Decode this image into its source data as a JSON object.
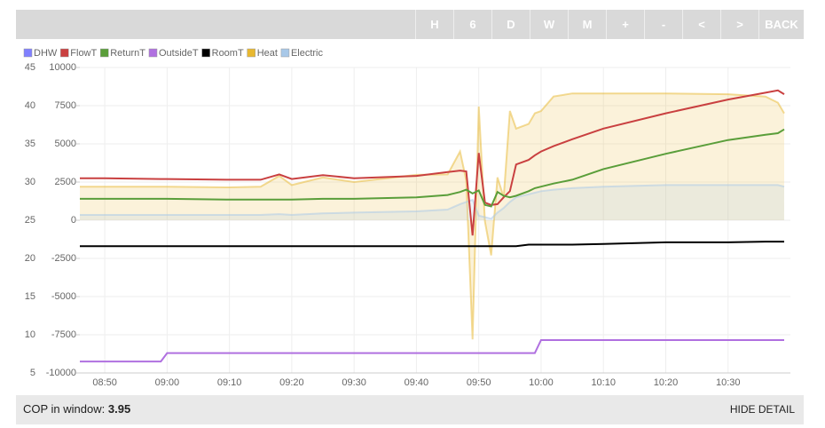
{
  "toolbar": {
    "buttons": [
      "H",
      "6",
      "D",
      "W",
      "M",
      "+",
      "-",
      "<",
      ">",
      "BACK"
    ]
  },
  "chart_data": {
    "type": "line",
    "x": [
      "08:46",
      "08:50",
      "08:59",
      "09:00",
      "09:10",
      "09:15",
      "09:18",
      "09:20",
      "09:25",
      "09:30",
      "09:40",
      "09:45",
      "09:47",
      "09:48",
      "09:49",
      "09:50",
      "09:51",
      "09:52",
      "09:53",
      "09:54",
      "09:55",
      "09:56",
      "09:58",
      "09:59",
      "10:00",
      "10:02",
      "10:05",
      "10:10",
      "10:20",
      "10:30",
      "10:36",
      "10:38",
      "10:39"
    ],
    "xlim": [
      "08:46",
      "10:40"
    ],
    "xticks": [
      "08:50",
      "09:00",
      "09:10",
      "09:20",
      "09:30",
      "09:40",
      "09:50",
      "10:00",
      "10:10",
      "10:20",
      "10:30"
    ],
    "ylim": [
      5,
      45
    ],
    "yticks": [
      5,
      10,
      15,
      20,
      25,
      30,
      35,
      40,
      45
    ],
    "y2lim": [
      -10000,
      10000
    ],
    "y2ticks": [
      -10000,
      -7500,
      -5000,
      -2500,
      0,
      2500,
      5000,
      7500,
      10000
    ],
    "grid": true,
    "series": [
      {
        "name": "DHW",
        "color": "#8080ff",
        "values": [
          null,
          null,
          null,
          null,
          null,
          null,
          null,
          null,
          null,
          null,
          null,
          null,
          null,
          null,
          null,
          null,
          null,
          null,
          null,
          null,
          null,
          null,
          null,
          null,
          null,
          null,
          null,
          null,
          null,
          null,
          null,
          null,
          null
        ]
      },
      {
        "name": "FlowT",
        "color": "#c94040",
        "values": [
          30.5,
          30.5,
          30.4,
          30.4,
          30.3,
          30.3,
          31,
          30.4,
          30.9,
          30.5,
          30.8,
          31.3,
          31.5,
          31.4,
          23,
          33.8,
          27.3,
          27,
          27.1,
          28,
          28.8,
          32.3,
          32.9,
          33.5,
          34,
          34.7,
          35.6,
          37,
          39,
          40.8,
          41.7,
          42,
          41.5
        ]
      },
      {
        "name": "ReturnT",
        "color": "#5a9e3a",
        "values": [
          27.8,
          27.8,
          27.8,
          27.8,
          27.7,
          27.7,
          27.7,
          27.7,
          27.8,
          27.8,
          28,
          28.3,
          28.7,
          29,
          28.5,
          28.9,
          27,
          26.8,
          28.7,
          28.2,
          28,
          28.2,
          28.8,
          29.2,
          29.4,
          29.8,
          30.3,
          31.7,
          33.7,
          35.5,
          36.2,
          36.4,
          36.9
        ]
      },
      {
        "name": "OutsideT",
        "color": "#b070e0",
        "values": [
          6.5,
          6.5,
          6.5,
          7.6,
          7.6,
          7.6,
          7.6,
          7.6,
          7.6,
          7.6,
          7.6,
          7.6,
          7.6,
          7.6,
          7.6,
          7.6,
          7.6,
          7.6,
          7.6,
          7.6,
          7.6,
          7.6,
          7.6,
          7.6,
          9.3,
          9.3,
          9.3,
          9.3,
          9.3,
          9.3,
          9.3,
          9.3,
          9.3
        ]
      },
      {
        "name": "RoomT",
        "color": "#000000",
        "values": [
          21.6,
          21.6,
          21.6,
          21.6,
          21.6,
          21.6,
          21.6,
          21.6,
          21.6,
          21.6,
          21.6,
          21.6,
          21.6,
          21.6,
          21.6,
          21.6,
          21.6,
          21.6,
          21.6,
          21.6,
          21.6,
          21.6,
          21.8,
          21.8,
          21.8,
          21.8,
          21.8,
          21.9,
          22.1,
          22.1,
          22.2,
          22.2,
          22.2
        ]
      },
      {
        "name": "Heat",
        "color": "#e8b830",
        "axis": "y2",
        "area": true,
        "values": [
          2200,
          2200,
          2200,
          2200,
          2150,
          2200,
          2900,
          2300,
          2800,
          2500,
          2970,
          3000,
          4500,
          2600,
          -7800,
          7440,
          -100,
          -2300,
          2800,
          1500,
          7150,
          6000,
          6300,
          7000,
          7150,
          8100,
          8300,
          8300,
          8300,
          8250,
          8100,
          7700,
          7000
        ]
      },
      {
        "name": "Electric",
        "color": "#a8c8e8",
        "axis": "y2",
        "area": true,
        "values": [
          350,
          350,
          350,
          350,
          350,
          350,
          400,
          350,
          450,
          500,
          580,
          700,
          1050,
          1200,
          1340,
          300,
          200,
          100,
          500,
          800,
          1200,
          1500,
          1700,
          1800,
          1900,
          2000,
          2100,
          2200,
          2300,
          2300,
          2300,
          2300,
          2200
        ]
      }
    ]
  },
  "footer": {
    "label": "COP in window:",
    "value": "3.95",
    "button": "HIDE DETAIL"
  }
}
